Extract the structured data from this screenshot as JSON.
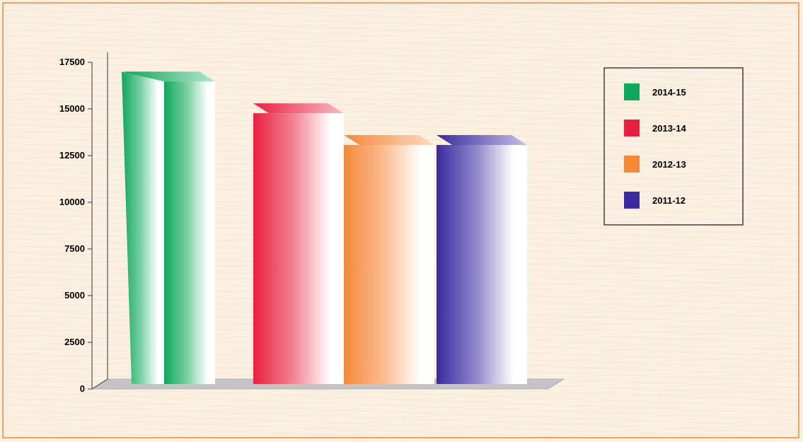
{
  "chart_data": {
    "type": "bar",
    "title": "",
    "xlabel": "",
    "ylabel": "",
    "ylim": [
      0,
      17500
    ],
    "yticks": [
      0,
      2500,
      5000,
      7500,
      10000,
      12500,
      15000,
      17500
    ],
    "grid": false,
    "legend_position": "top-right",
    "style": "3d-cylinder",
    "series": [
      {
        "name": "2014-15",
        "value": 17000,
        "color": "#0ea85a"
      },
      {
        "name": "2013-14",
        "value": 15300,
        "color": "#e8203f"
      },
      {
        "name": "2012-13",
        "value": 13600,
        "color": "#f5883a"
      },
      {
        "name": "2011-12",
        "value": 13600,
        "color": "#3a2aa0"
      }
    ]
  }
}
